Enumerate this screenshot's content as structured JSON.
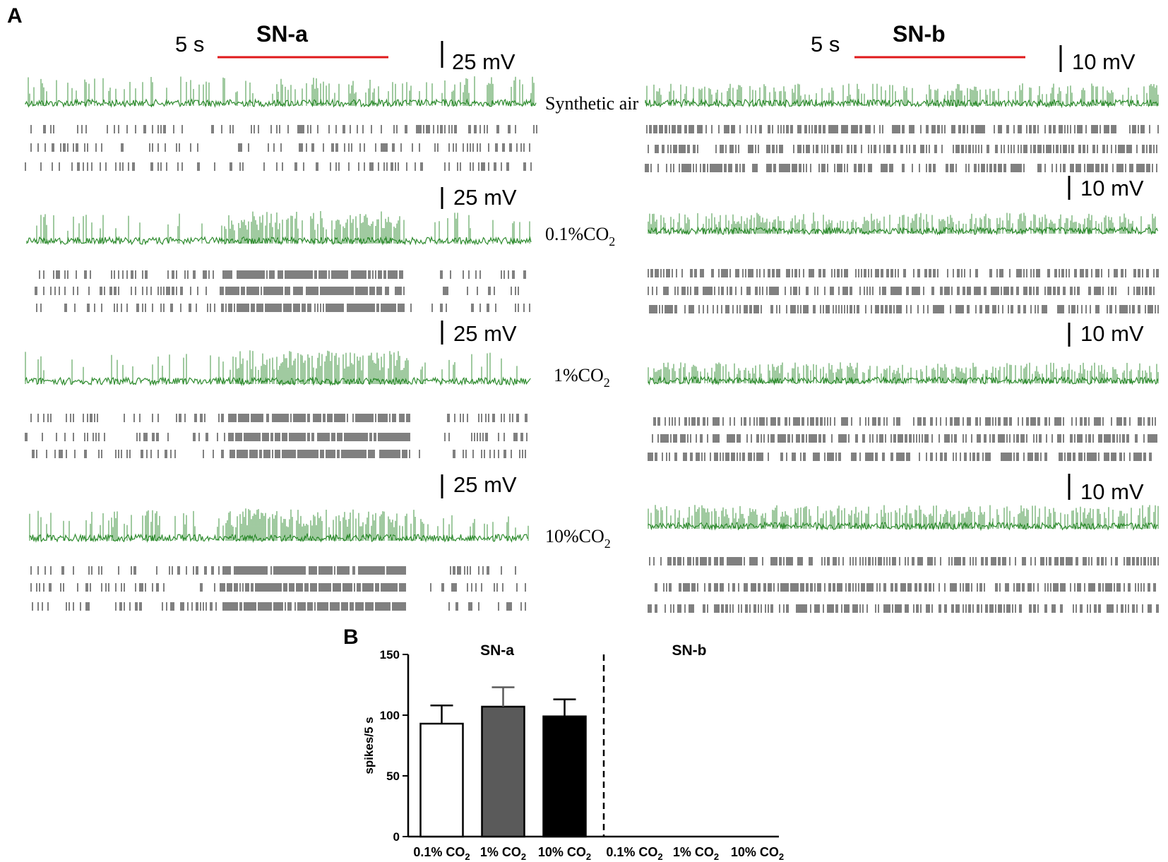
{
  "panel_a": {
    "letter": "A",
    "time_scale": "5 s",
    "neurons": [
      {
        "name": "SN-a",
        "voltage_scale": "25 mV"
      },
      {
        "name": "SN-b",
        "voltage_scale": "10 mV"
      }
    ],
    "conditions": [
      {
        "label": "Synthetic air",
        "subscript": ""
      },
      {
        "label": "0.1%CO",
        "subscript": "2"
      },
      {
        "label": "1%CO",
        "subscript": "2"
      },
      {
        "label": "10%CO",
        "subscript": "2"
      }
    ]
  },
  "panel_b": {
    "letter": "B"
  },
  "colors": {
    "trace": "#2e8b2e",
    "stimulus_bar": "#e0191b",
    "raster": "#000000"
  },
  "chart_data": {
    "type": "bar",
    "ylabel": "spikes/5 s",
    "ylim": [
      0,
      150
    ],
    "yticks": [
      "0",
      "50",
      "100",
      "150"
    ],
    "groups": [
      {
        "name": "SN-a",
        "bars": [
          {
            "category": "0.1% CO",
            "sub": "2",
            "value": 93,
            "error": 15,
            "color": "#ffffff"
          },
          {
            "category": "1% CO",
            "sub": "2",
            "value": 107,
            "error": 16,
            "color": "#5a5a5a"
          },
          {
            "category": "10% CO",
            "sub": "2",
            "value": 99,
            "error": 14,
            "color": "#000000"
          }
        ]
      },
      {
        "name": "SN-b",
        "bars": [
          {
            "category": "0.1% CO",
            "sub": "2",
            "value": 0,
            "error": 0,
            "color": "#ffffff"
          },
          {
            "category": "1% CO",
            "sub": "2",
            "value": 0,
            "error": 0,
            "color": "#5a5a5a"
          },
          {
            "category": "10% CO",
            "sub": "2",
            "value": 0,
            "error": 0,
            "color": "#000000"
          }
        ]
      }
    ]
  }
}
